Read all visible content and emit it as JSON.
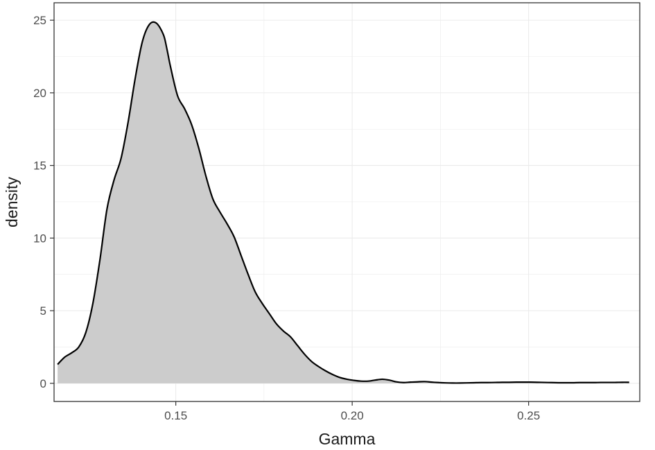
{
  "chart_data": {
    "type": "area",
    "title": "",
    "xlabel": "Gamma",
    "ylabel": "density",
    "xlim": [
      0.1155,
      0.2815
    ],
    "ylim": [
      -1.25,
      26.2
    ],
    "x_ticks": [
      0.15,
      0.2,
      0.25
    ],
    "x_tick_labels": [
      "0.15",
      "0.20",
      "0.25"
    ],
    "y_ticks": [
      0,
      5,
      10,
      15,
      20,
      25
    ],
    "y_tick_labels": [
      "0",
      "5",
      "10",
      "15",
      "20",
      "25"
    ],
    "grid": true,
    "legend": "none",
    "fill_color": "#cccccc",
    "line_color": "#000000",
    "series": [
      {
        "x": [
          0.1165,
          0.1185,
          0.1205,
          0.1225,
          0.1245,
          0.1265,
          0.1285,
          0.1305,
          0.1325,
          0.1345,
          0.1365,
          0.1385,
          0.1405,
          0.1425,
          0.1445,
          0.1465,
          0.1475,
          0.1485,
          0.1505,
          0.1525,
          0.1545,
          0.1565,
          0.1585,
          0.1605,
          0.1625,
          0.1645,
          0.1665,
          0.1685,
          0.1705,
          0.1725,
          0.1745,
          0.1765,
          0.1785,
          0.1805,
          0.1825,
          0.1845,
          0.1865,
          0.1885,
          0.1905,
          0.1925,
          0.1945,
          0.1965,
          0.1985,
          0.2005,
          0.2025,
          0.2045,
          0.2065,
          0.2085,
          0.2105,
          0.2125,
          0.2145,
          0.2165,
          0.2185,
          0.2205,
          0.2225,
          0.2245,
          0.2265,
          0.2285,
          0.2305,
          0.2325,
          0.2345,
          0.2365,
          0.2385,
          0.2405,
          0.2425,
          0.2445,
          0.2465,
          0.2485,
          0.2505,
          0.2525,
          0.2545,
          0.2565,
          0.2585,
          0.2605,
          0.2625,
          0.2645,
          0.2665,
          0.2685,
          0.2705,
          0.2725,
          0.2745,
          0.2765,
          0.2785
        ],
        "y": [
          1.3,
          1.8,
          2.1,
          2.5,
          3.5,
          5.5,
          8.5,
          12.0,
          14.0,
          15.5,
          18.0,
          21.0,
          23.5,
          24.7,
          24.8,
          24.0,
          23.0,
          21.8,
          19.8,
          18.9,
          17.8,
          16.2,
          14.3,
          12.7,
          11.8,
          11.0,
          10.1,
          8.8,
          7.5,
          6.3,
          5.5,
          4.8,
          4.1,
          3.6,
          3.2,
          2.6,
          2.0,
          1.5,
          1.15,
          0.85,
          0.6,
          0.4,
          0.28,
          0.2,
          0.15,
          0.15,
          0.22,
          0.28,
          0.22,
          0.1,
          0.05,
          0.08,
          0.1,
          0.12,
          0.08,
          0.05,
          0.03,
          0.02,
          0.02,
          0.03,
          0.04,
          0.05,
          0.05,
          0.06,
          0.07,
          0.07,
          0.08,
          0.08,
          0.08,
          0.07,
          0.06,
          0.05,
          0.04,
          0.04,
          0.04,
          0.05,
          0.05,
          0.05,
          0.06,
          0.06,
          0.06,
          0.07,
          0.07
        ]
      }
    ]
  }
}
